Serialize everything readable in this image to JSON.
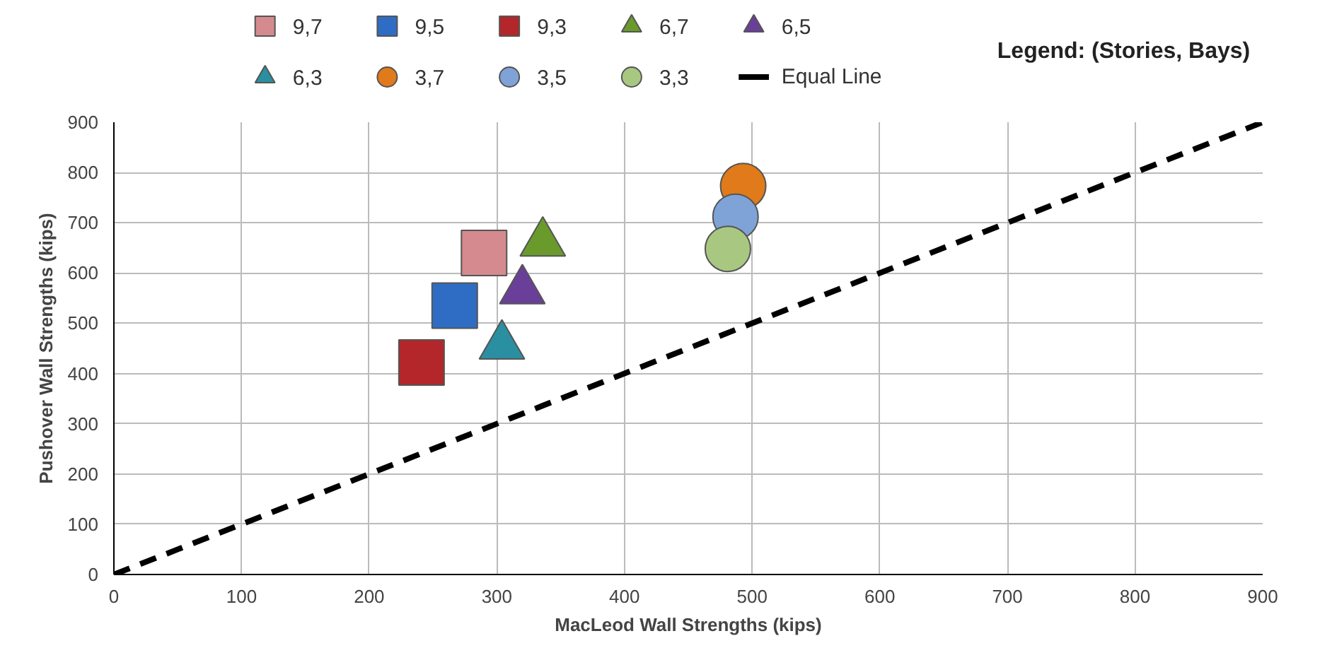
{
  "chart_data": {
    "type": "scatter",
    "xlabel": "MacLeod Wall Strengths (kips)",
    "ylabel": "Pushover Wall Strengths (kips)",
    "annotations": [
      "Legend: (Stories, Bays)"
    ],
    "xlim": [
      0,
      900
    ],
    "ylim": [
      0,
      900
    ],
    "xticks": [
      0,
      100,
      200,
      300,
      400,
      500,
      600,
      700,
      800,
      900
    ],
    "yticks": [
      0,
      100,
      200,
      300,
      400,
      500,
      600,
      700,
      800,
      900
    ],
    "grid": true,
    "legend": "top",
    "series": [
      {
        "name": "9,7",
        "color": "#d48a8e",
        "marker": "square",
        "x": [
          290
        ],
        "values": [
          640
        ]
      },
      {
        "name": "9,5",
        "color": "#2f6cc4",
        "marker": "square",
        "x": [
          267
        ],
        "values": [
          535
        ]
      },
      {
        "name": "9,3",
        "color": "#b3262a",
        "marker": "square",
        "x": [
          241
        ],
        "values": [
          422
        ]
      },
      {
        "name": "6,7",
        "color": "#6a9a2c",
        "marker": "triangle",
        "x": [
          336
        ],
        "values": [
          660
        ]
      },
      {
        "name": "6,5",
        "color": "#6a3f9a",
        "marker": "triangle",
        "x": [
          320
        ],
        "values": [
          565
        ]
      },
      {
        "name": "6,3",
        "color": "#2a8fa0",
        "marker": "triangle",
        "x": [
          304
        ],
        "values": [
          455
        ]
      },
      {
        "name": "3,7",
        "color": "#e07a1a",
        "marker": "circle",
        "x": [
          493
        ],
        "values": [
          773
        ]
      },
      {
        "name": "3,5",
        "color": "#7fa3d6",
        "marker": "circle",
        "x": [
          487
        ],
        "values": [
          712
        ]
      },
      {
        "name": "3,3",
        "color": "#a8c882",
        "marker": "circle",
        "x": [
          481
        ],
        "values": [
          648
        ]
      },
      {
        "name": "Equal Line",
        "color": "#000000",
        "type": "line",
        "line_style": "dashed",
        "marker": "none",
        "x": [
          0,
          900
        ],
        "values": [
          0,
          900
        ]
      }
    ]
  }
}
